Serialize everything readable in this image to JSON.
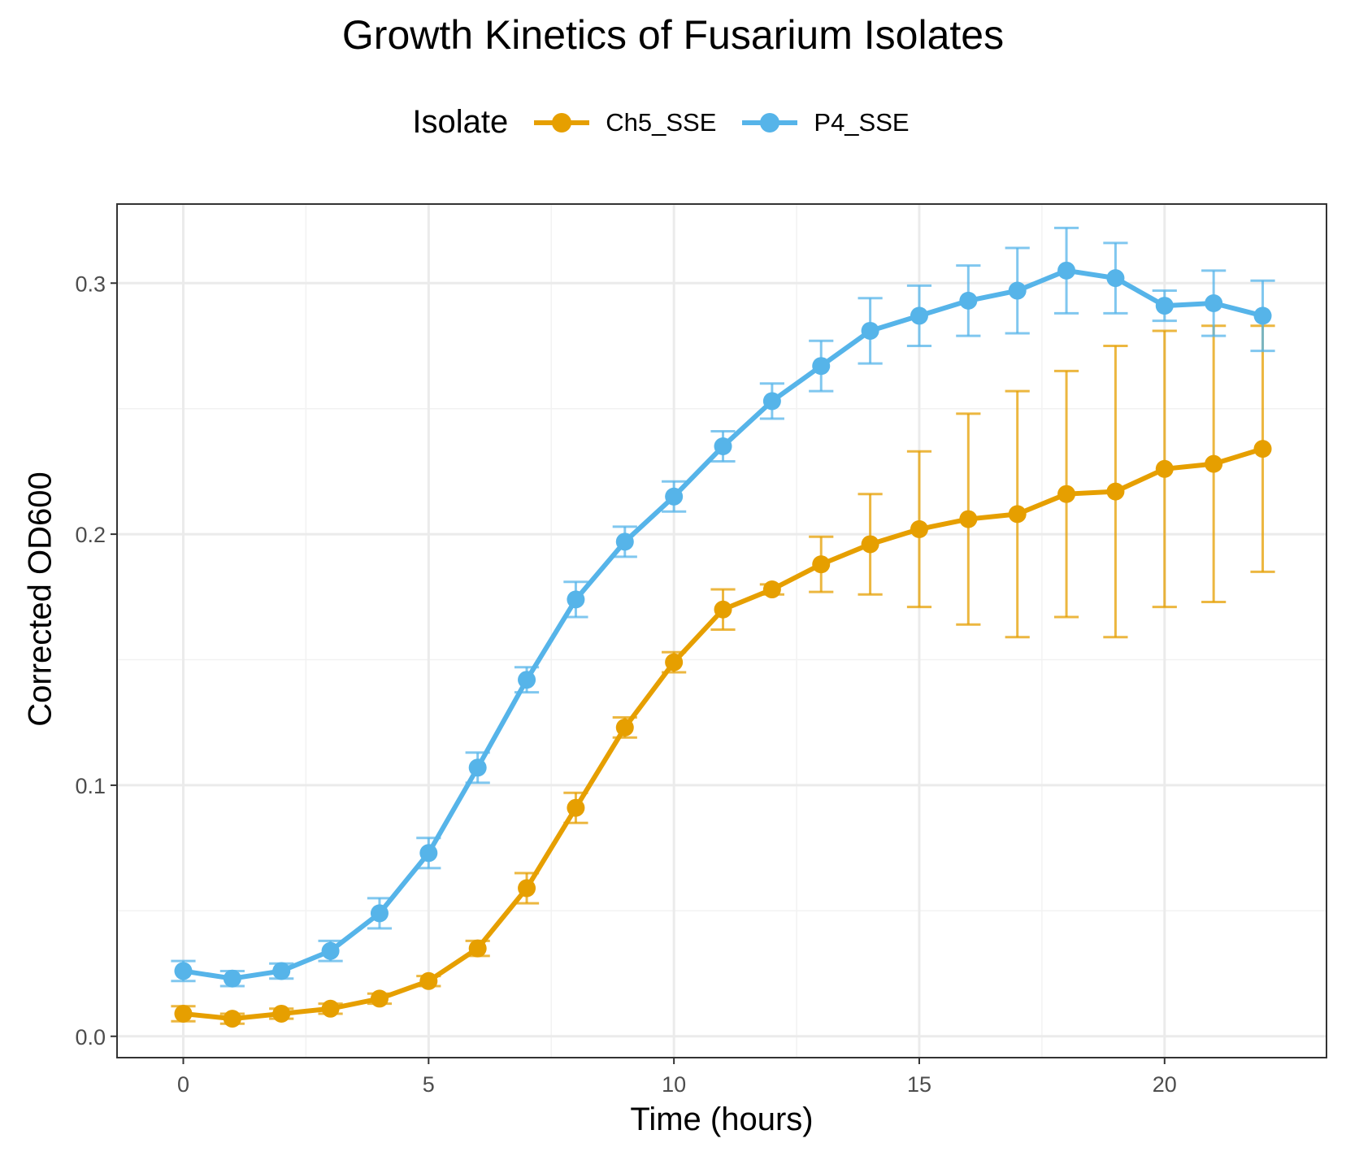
{
  "chart_data": {
    "type": "line",
    "title": "Growth Kinetics of Fusarium Isolates",
    "xlabel": "Time (hours)",
    "ylabel": "Corrected OD600",
    "xlim": [
      -1.35,
      23.3
    ],
    "ylim": [
      -0.0085,
      0.3315
    ],
    "x_ticks": [
      0,
      5,
      10,
      15,
      20
    ],
    "x_tick_labels": [
      "0",
      "5",
      "10",
      "15",
      "20"
    ],
    "y_ticks": [
      0.0,
      0.1,
      0.2,
      0.3
    ],
    "y_tick_labels": [
      "0.0",
      "0.1",
      "0.2",
      "0.3"
    ],
    "grid": true,
    "legend": {
      "title": "Isolate",
      "position": "top"
    },
    "x": [
      0,
      1,
      2,
      3,
      4,
      5,
      6,
      7,
      8,
      9,
      10,
      11,
      12,
      13,
      14,
      15,
      16,
      17,
      18,
      19,
      20,
      21,
      22
    ],
    "series": [
      {
        "name": "Ch5_SSE",
        "color": "#E69F00",
        "values": [
          0.009,
          0.007,
          0.009,
          0.011,
          0.015,
          0.022,
          0.035,
          0.059,
          0.091,
          0.123,
          0.149,
          0.17,
          0.178,
          0.188,
          0.196,
          0.202,
          0.206,
          0.208,
          0.216,
          0.217,
          0.226,
          0.228,
          0.234
        ],
        "error": [
          0.003,
          0.002,
          0.002,
          0.002,
          0.002,
          0.002,
          0.003,
          0.006,
          0.006,
          0.004,
          0.004,
          0.008,
          0.002,
          0.011,
          0.02,
          0.031,
          0.042,
          0.049,
          0.049,
          0.058,
          0.055,
          0.055,
          0.049
        ]
      },
      {
        "name": "P4_SSE",
        "color": "#56B4E9",
        "values": [
          0.026,
          0.023,
          0.026,
          0.034,
          0.049,
          0.073,
          0.107,
          0.142,
          0.174,
          0.197,
          0.215,
          0.235,
          0.253,
          0.267,
          0.281,
          0.287,
          0.293,
          0.297,
          0.305,
          0.302,
          0.291,
          0.292,
          0.287
        ],
        "error": [
          0.004,
          0.003,
          0.003,
          0.004,
          0.006,
          0.006,
          0.006,
          0.005,
          0.007,
          0.006,
          0.006,
          0.006,
          0.007,
          0.01,
          0.013,
          0.012,
          0.014,
          0.017,
          0.017,
          0.014,
          0.006,
          0.013,
          0.014
        ]
      }
    ]
  }
}
